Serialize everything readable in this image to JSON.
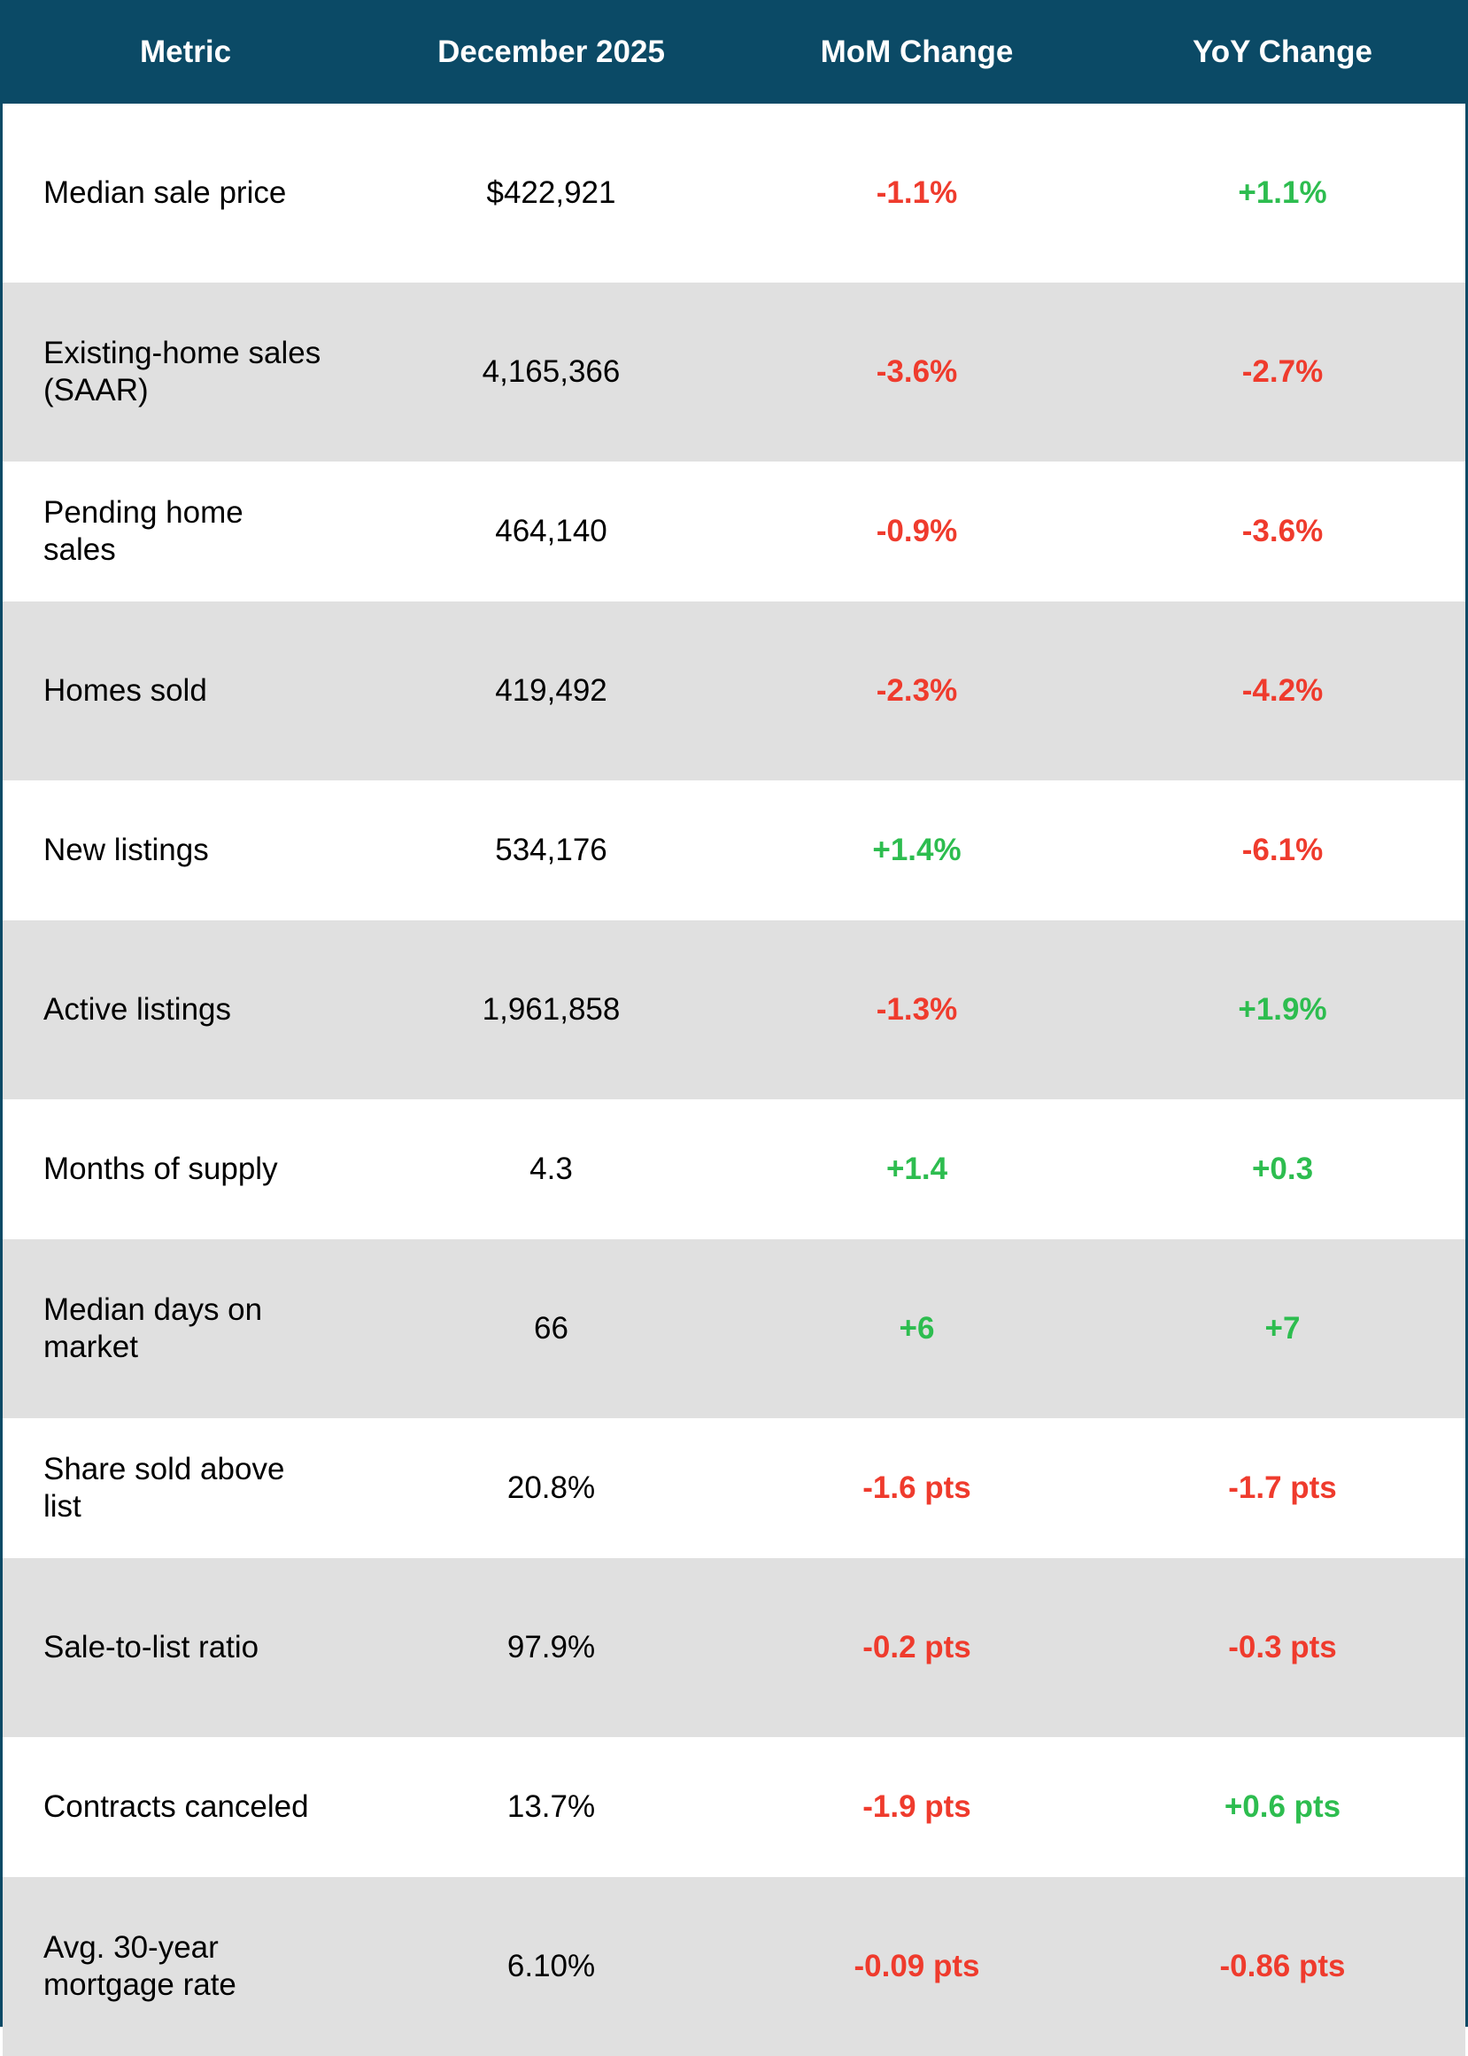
{
  "table": {
    "header": [
      "Metric",
      "December 2025",
      "MoM Change",
      "YoY Change"
    ],
    "rows": [
      {
        "metric": [
          "Median sale price"
        ],
        "value": "$422,921",
        "mom": {
          "text": "-1.1%",
          "color": "#ef3b2d"
        },
        "yoy": {
          "text": "+1.1%",
          "color": "#2dbd4f"
        }
      },
      {
        "metric": [
          "Existing-home sales",
          "(SAAR)"
        ],
        "value": "4,165,366",
        "mom": {
          "text": "-3.6%",
          "color": "#ef3b2d"
        },
        "yoy": {
          "text": "-2.7%",
          "color": "#ef3b2d"
        }
      },
      {
        "metric": [
          "Pending home",
          "sales"
        ],
        "value": "464,140",
        "mom": {
          "text": "-0.9%",
          "color": "#ef3b2d"
        },
        "yoy": {
          "text": "-3.6%",
          "color": "#ef3b2d"
        }
      },
      {
        "metric": [
          "Homes sold"
        ],
        "value": "419,492",
        "mom": {
          "text": "-2.3%",
          "color": "#ef3b2d"
        },
        "yoy": {
          "text": "-4.2%",
          "color": "#ef3b2d"
        }
      },
      {
        "metric": [
          "New listings"
        ],
        "value": "534,176",
        "mom": {
          "text": "+1.4%",
          "color": "#2dbd4f"
        },
        "yoy": {
          "text": "-6.1%",
          "color": "#ef3b2d"
        }
      },
      {
        "metric": [
          "Active listings"
        ],
        "value": "1,961,858",
        "mom": {
          "text": "-1.3%",
          "color": "#ef3b2d"
        },
        "yoy": {
          "text": "+1.9%",
          "color": "#2dbd4f"
        }
      },
      {
        "metric": [
          "Months of supply"
        ],
        "value": "4.3",
        "mom": {
          "text": "+1.4",
          "color": "#2dbd4f"
        },
        "yoy": {
          "text": "+0.3",
          "color": "#2dbd4f"
        }
      },
      {
        "metric": [
          "Median days on",
          "market"
        ],
        "value": "66",
        "mom": {
          "text": "+6",
          "color": "#2dbd4f"
        },
        "yoy": {
          "text": "+7",
          "color": "#2dbd4f"
        }
      },
      {
        "metric": [
          "Share sold above",
          "list"
        ],
        "value": "20.8%",
        "mom": {
          "text": "-1.6 pts",
          "color": "#ef3b2d"
        },
        "yoy": {
          "text": "-1.7 pts",
          "color": "#ef3b2d"
        }
      },
      {
        "metric": [
          "Sale-to-list ratio"
        ],
        "value": "97.9%",
        "mom": {
          "text": "-0.2 pts",
          "color": "#ef3b2d"
        },
        "yoy": {
          "text": "-0.3 pts",
          "color": "#ef3b2d"
        }
      },
      {
        "metric": [
          "Contracts canceled"
        ],
        "value": "13.7%",
        "mom": {
          "text": "-1.9 pts",
          "color": "#ef3b2d"
        },
        "yoy": {
          "text": "+0.6 pts",
          "color": "#2dbd4f"
        }
      },
      {
        "metric": [
          "Avg. 30-year",
          "mortgage rate"
        ],
        "value": "6.10%",
        "mom": {
          "text": "-0.09 pts",
          "color": "#ef3b2d"
        },
        "yoy": {
          "text": "-0.86 pts",
          "color": "#ef3b2d"
        }
      }
    ]
  }
}
